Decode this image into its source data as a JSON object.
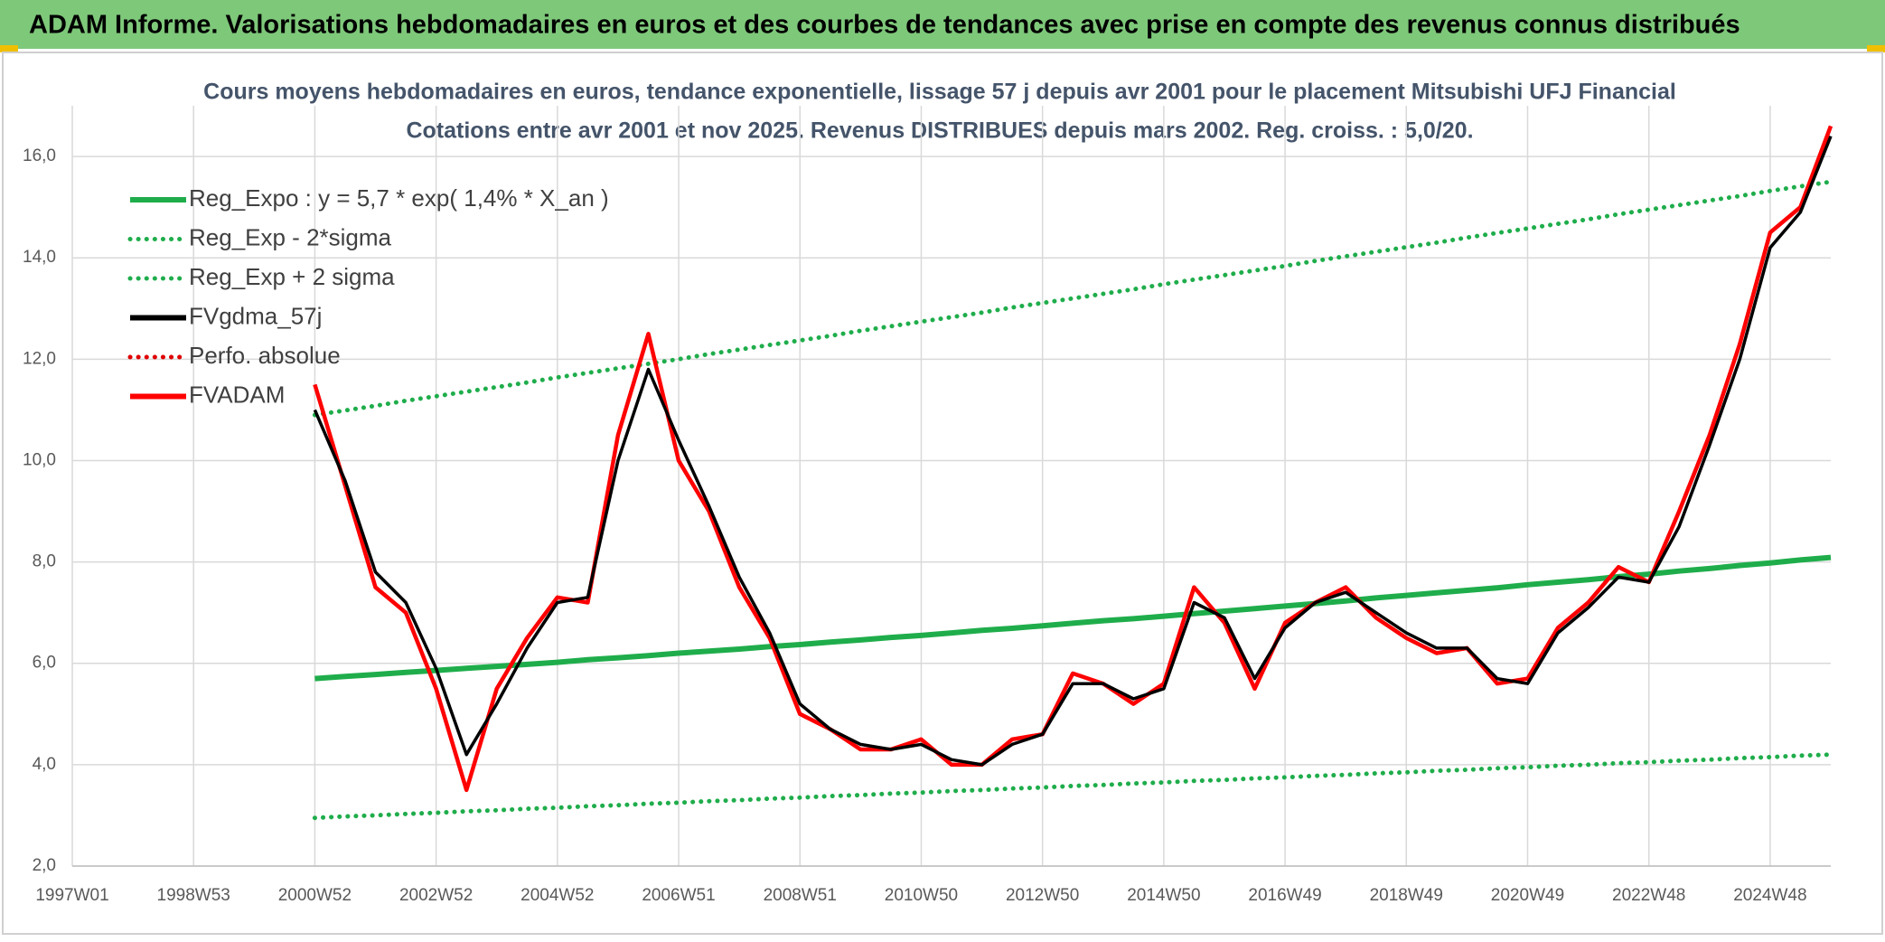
{
  "header": {
    "title": "ADAM Informe. Valorisations hebdomadaires en euros et des courbes de tendances avec prise en compte des revenus connus distribués"
  },
  "chart_data": {
    "type": "line",
    "title": "Cours moyens hebdomadaires en euros, tendance exponentielle, lissage 57 j depuis avr 2001 pour le placement Mitsubishi UFJ Financial",
    "subtitle": "Cotations entre avr 2001 et nov 2025. Revenus DISTRIBUES depuis mars 2002. Reg. croiss. : 5,0/20.",
    "categories": [
      "1997W01",
      null,
      null,
      null,
      "1998W53",
      null,
      null,
      null,
      "2000W52",
      null,
      null,
      null,
      "2002W52",
      null,
      null,
      null,
      "2004W52",
      null,
      null,
      null,
      "2006W51",
      null,
      null,
      null,
      "2008W51",
      null,
      null,
      null,
      "2010W50",
      null,
      null,
      null,
      "2012W50",
      null,
      null,
      null,
      "2014W50",
      null,
      null,
      null,
      "2016W49",
      null,
      null,
      null,
      "2018W49",
      null,
      null,
      null,
      "2020W49",
      null,
      null,
      null,
      "2022W48",
      null,
      null,
      null,
      "2024W48",
      null,
      null
    ],
    "ylim": [
      2,
      17
    ],
    "yticks": [
      {
        "value": 2,
        "label": "2,0"
      },
      {
        "value": 4,
        "label": "4,0"
      },
      {
        "value": 6,
        "label": "6,0"
      },
      {
        "value": 8,
        "label": "8,0"
      },
      {
        "value": 10,
        "label": "10,0"
      },
      {
        "value": 12,
        "label": "12,0"
      },
      {
        "value": 14,
        "label": "14,0"
      },
      {
        "value": 16,
        "label": "16,0"
      }
    ],
    "grid": true,
    "legend": "upper-left",
    "series": [
      {
        "name": "Reg_Expo : y = 5,7 * exp( 1,4% *  X_an )",
        "color": "#1fad4b",
        "line_style": "solid",
        "values": [
          null,
          null,
          null,
          null,
          null,
          null,
          null,
          null,
          5.7,
          5.74,
          5.78,
          5.82,
          5.86,
          5.9,
          5.94,
          5.98,
          6.02,
          6.07,
          6.11,
          6.15,
          6.2,
          6.24,
          6.28,
          6.33,
          6.37,
          6.42,
          6.46,
          6.51,
          6.55,
          6.6,
          6.65,
          6.69,
          6.74,
          6.79,
          6.84,
          6.88,
          6.93,
          6.98,
          7.03,
          7.08,
          7.13,
          7.18,
          7.23,
          7.29,
          7.34,
          7.39,
          7.44,
          7.49,
          7.55,
          7.6,
          7.65,
          7.71,
          7.76,
          7.82,
          7.87,
          7.93,
          7.98,
          8.04,
          8.09
        ]
      },
      {
        "name": "Reg_Exp - 2*sigma",
        "color": "#1fad4b",
        "line_style": "dotted",
        "values": [
          null,
          null,
          null,
          null,
          null,
          null,
          null,
          null,
          2.95,
          2.98,
          3.0,
          3.03,
          3.05,
          3.08,
          3.1,
          3.13,
          3.15,
          3.18,
          3.2,
          3.23,
          3.25,
          3.28,
          3.3,
          3.33,
          3.35,
          3.38,
          3.4,
          3.43,
          3.45,
          3.48,
          3.5,
          3.53,
          3.55,
          3.58,
          3.6,
          3.63,
          3.65,
          3.68,
          3.7,
          3.73,
          3.75,
          3.78,
          3.8,
          3.83,
          3.85,
          3.88,
          3.9,
          3.93,
          3.95,
          3.98,
          4.0,
          4.03,
          4.05,
          4.08,
          4.1,
          4.13,
          4.15,
          4.18,
          4.2
        ]
      },
      {
        "name": "Reg_Exp + 2 sigma",
        "color": "#1fad4b",
        "line_style": "dotted",
        "values": [
          null,
          null,
          null,
          null,
          null,
          null,
          null,
          null,
          10.9,
          10.99,
          11.08,
          11.18,
          11.27,
          11.36,
          11.45,
          11.54,
          11.64,
          11.73,
          11.82,
          11.91,
          12.0,
          12.1,
          12.19,
          12.28,
          12.37,
          12.46,
          12.56,
          12.65,
          12.74,
          12.83,
          12.92,
          13.02,
          13.11,
          13.2,
          13.29,
          13.38,
          13.48,
          13.57,
          13.66,
          13.75,
          13.84,
          13.94,
          14.03,
          14.12,
          14.21,
          14.3,
          14.4,
          14.49,
          14.58,
          14.67,
          14.76,
          14.86,
          14.95,
          15.04,
          15.13,
          15.22,
          15.32,
          15.41,
          15.5
        ]
      },
      {
        "name": "FVgdma_57j",
        "color": "#000000",
        "line_style": "solid",
        "values": [
          null,
          null,
          null,
          null,
          null,
          null,
          null,
          null,
          11.0,
          9.6,
          7.8,
          7.2,
          5.9,
          4.2,
          5.2,
          6.3,
          7.2,
          7.3,
          10.0,
          11.8,
          10.4,
          9.1,
          7.7,
          6.6,
          5.2,
          4.7,
          4.4,
          4.3,
          4.4,
          4.1,
          4.0,
          4.4,
          4.6,
          5.6,
          5.6,
          5.3,
          5.5,
          7.2,
          6.9,
          5.7,
          6.7,
          7.2,
          7.4,
          7.0,
          6.6,
          6.3,
          6.3,
          5.7,
          5.6,
          6.6,
          7.1,
          7.7,
          7.6,
          8.7,
          10.3,
          12.0,
          14.2,
          14.9,
          16.4
        ]
      },
      {
        "name": "Perfo. absolue",
        "color": "#e00000",
        "line_style": "dotted",
        "values": [
          null,
          null,
          null,
          null,
          null,
          null,
          null,
          null,
          null,
          null,
          null,
          null,
          null,
          null,
          null,
          null,
          null,
          null,
          null,
          null,
          null,
          null,
          null,
          null,
          null,
          null,
          null,
          null,
          null,
          null,
          null,
          null,
          null,
          null,
          null,
          null,
          null,
          null,
          null,
          null,
          null,
          null,
          null,
          null,
          null,
          null,
          null,
          null,
          null,
          null,
          null,
          null,
          null,
          null,
          null,
          null,
          null,
          null,
          null
        ]
      },
      {
        "name": "FVADAM",
        "color": "#ff0000",
        "line_style": "solid",
        "values": [
          null,
          null,
          null,
          null,
          null,
          null,
          null,
          null,
          11.5,
          9.5,
          7.5,
          7.0,
          5.5,
          3.5,
          5.5,
          6.5,
          7.3,
          7.2,
          10.5,
          12.5,
          10.0,
          9.0,
          7.5,
          6.5,
          5.0,
          4.7,
          4.3,
          4.3,
          4.5,
          4.0,
          4.0,
          4.5,
          4.6,
          5.8,
          5.6,
          5.2,
          5.6,
          7.5,
          6.8,
          5.5,
          6.8,
          7.2,
          7.5,
          6.9,
          6.5,
          6.2,
          6.3,
          5.6,
          5.7,
          6.7,
          7.2,
          7.9,
          7.6,
          9.0,
          10.5,
          12.3,
          14.5,
          15.0,
          16.6
        ]
      }
    ]
  }
}
